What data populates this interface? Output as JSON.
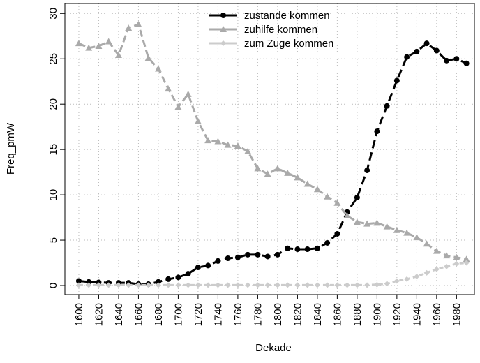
{
  "chart_data": {
    "type": "line",
    "x": [
      1600,
      1610,
      1620,
      1630,
      1640,
      1650,
      1660,
      1670,
      1680,
      1690,
      1700,
      1710,
      1720,
      1730,
      1740,
      1750,
      1760,
      1770,
      1780,
      1790,
      1800,
      1810,
      1820,
      1830,
      1840,
      1850,
      1860,
      1870,
      1880,
      1890,
      1900,
      1910,
      1920,
      1930,
      1940,
      1950,
      1960,
      1970,
      1980,
      1990
    ],
    "series": [
      {
        "name": "zustande kommen",
        "color": "#000000",
        "marker": "circle",
        "values": [
          0.5,
          0.4,
          0.35,
          0.3,
          0.3,
          0.3,
          0.15,
          0.15,
          0.4,
          0.7,
          0.9,
          1.3,
          2.0,
          2.2,
          2.7,
          3.0,
          3.1,
          3.4,
          3.4,
          3.2,
          3.4,
          4.1,
          4.0,
          4.0,
          4.1,
          4.7,
          5.7,
          8.1,
          9.7,
          12.7,
          17.0,
          19.8,
          22.6,
          25.2,
          25.8,
          26.7,
          25.9,
          24.8,
          25.0,
          24.5
        ]
      },
      {
        "name": "zuhilfe kommen",
        "color": "#aaaaaa",
        "marker": "triangle",
        "values": [
          26.7,
          26.2,
          26.4,
          26.9,
          25.4,
          28.4,
          28.8,
          25.1,
          23.9,
          21.7,
          19.7,
          21.1,
          18.1,
          16.0,
          15.9,
          15.5,
          15.4,
          14.8,
          12.9,
          12.3,
          12.9,
          12.4,
          11.9,
          11.2,
          10.6,
          9.8,
          9.1,
          7.7,
          7.0,
          6.8,
          6.9,
          6.5,
          6.1,
          5.8,
          5.3,
          4.6,
          3.8,
          3.3,
          3.1,
          2.9
        ]
      },
      {
        "name": "zum Zuge kommen",
        "color": "#cccccc",
        "marker": "diamond",
        "values": [
          0.05,
          0.05,
          0.05,
          0.05,
          0.05,
          0.05,
          0.05,
          0.05,
          0.05,
          0.05,
          0.05,
          0.05,
          0.05,
          0.05,
          0.05,
          0.05,
          0.05,
          0.05,
          0.05,
          0.05,
          0.05,
          0.05,
          0.05,
          0.05,
          0.05,
          0.05,
          0.05,
          0.05,
          0.05,
          0.05,
          0.1,
          0.2,
          0.5,
          0.7,
          1.0,
          1.4,
          1.8,
          2.1,
          2.4,
          2.5
        ]
      }
    ],
    "xlabel": "Dekade",
    "ylabel": "Freq_pmW",
    "xlim": [
      1586,
      1998
    ],
    "ylim": [
      -1,
      31.1
    ],
    "xticks": [
      1600,
      1620,
      1640,
      1660,
      1680,
      1700,
      1720,
      1740,
      1760,
      1780,
      1800,
      1820,
      1840,
      1860,
      1880,
      1900,
      1920,
      1940,
      1960,
      1980
    ],
    "yticks": [
      0,
      5,
      10,
      15,
      20,
      25,
      30
    ],
    "grid": true,
    "legend": "top"
  }
}
